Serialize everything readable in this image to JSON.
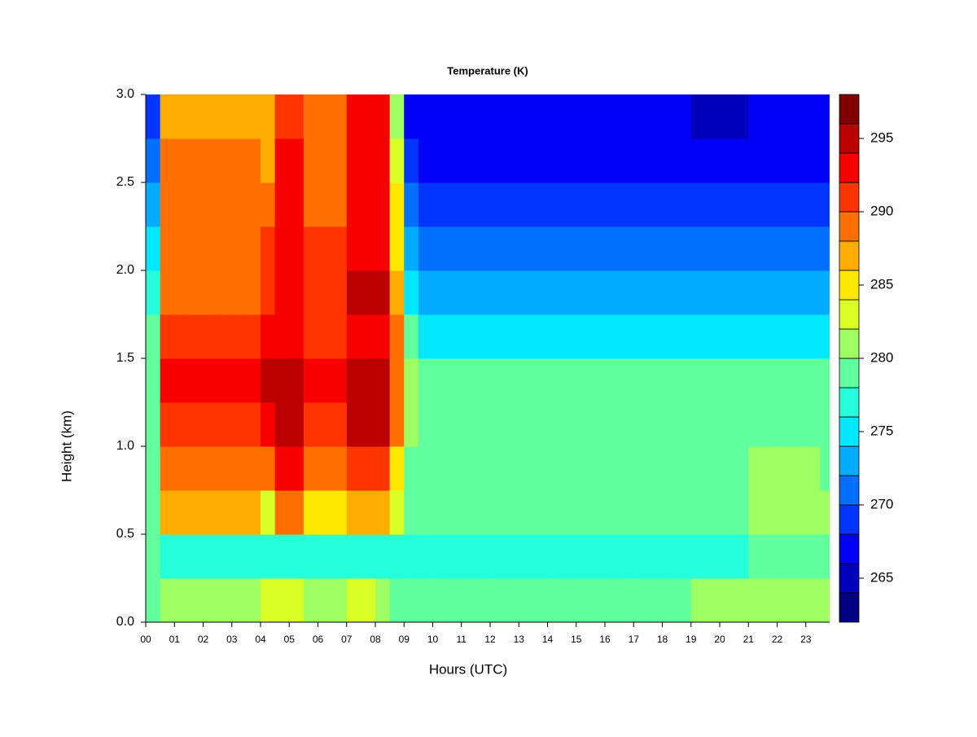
{
  "chart_data": {
    "type": "heatmap",
    "title": "Temperature (K)",
    "xlabel": "Hours (UTC)",
    "ylabel": "Height (km)",
    "xlim": [
      0,
      23.83
    ],
    "ylim": [
      0,
      3
    ],
    "xticks": [
      {
        "value": 0,
        "label": "00"
      },
      {
        "value": 1,
        "label": "01"
      },
      {
        "value": 2,
        "label": "02"
      },
      {
        "value": 3,
        "label": "03"
      },
      {
        "value": 4,
        "label": "04"
      },
      {
        "value": 5,
        "label": "05"
      },
      {
        "value": 6,
        "label": "06"
      },
      {
        "value": 7,
        "label": "07"
      },
      {
        "value": 8,
        "label": "08"
      },
      {
        "value": 9,
        "label": "09"
      },
      {
        "value": 10,
        "label": "10"
      },
      {
        "value": 11,
        "label": "11"
      },
      {
        "value": 12,
        "label": "12"
      },
      {
        "value": 13,
        "label": "13"
      },
      {
        "value": 14,
        "label": "14"
      },
      {
        "value": 15,
        "label": "15"
      },
      {
        "value": 16,
        "label": "16"
      },
      {
        "value": 17,
        "label": "17"
      },
      {
        "value": 18,
        "label": "18"
      },
      {
        "value": 19,
        "label": "19"
      },
      {
        "value": 20,
        "label": "20"
      },
      {
        "value": 21,
        "label": "21"
      },
      {
        "value": 22,
        "label": "22"
      },
      {
        "value": 23,
        "label": "23"
      }
    ],
    "yticks": [
      {
        "value": 0,
        "label": "0.0"
      },
      0.5,
      {
        "value": 1,
        "label": "1.0"
      },
      1.5,
      {
        "value": 2,
        "label": "2.0"
      },
      2.5,
      {
        "value": 3,
        "label": "3.0"
      }
    ],
    "levels": [
      262,
      264,
      266,
      268,
      270,
      272,
      274,
      276,
      278,
      280,
      282,
      284,
      286,
      288,
      290,
      292,
      294,
      296,
      298
    ],
    "colors": [
      "#000080",
      "#0000BB",
      "#0000F7",
      "#0035FF",
      "#0070FF",
      "#00ACFF",
      "#00E8FF",
      "#25FFDA",
      "#61FF9D",
      "#9DFF61",
      "#DAFF25",
      "#FFE800",
      "#FFAC00",
      "#FF7000",
      "#FF3500",
      "#F70000",
      "#BB0000",
      "#800000"
    ],
    "colorbar_ticks": [
      265,
      270,
      275,
      280,
      285,
      290,
      295
    ],
    "x": [
      0.25,
      0.75,
      1.25,
      1.75,
      2.25,
      2.75,
      3.25,
      3.75,
      4.25,
      4.75,
      5.25,
      5.75,
      6.25,
      6.75,
      7.25,
      7.75,
      8.25,
      8.75,
      9.25,
      9.75,
      10.25,
      10.75,
      11.25,
      11.75,
      12.25,
      12.75,
      13.25,
      13.75,
      14.25,
      14.75,
      15.25,
      15.75,
      16.25,
      16.75,
      17.25,
      17.75,
      18.25,
      18.75,
      19.25,
      19.75,
      20.25,
      20.75,
      21.25,
      21.75,
      22.25,
      22.75,
      23.25,
      23.75
    ],
    "y": [
      0.125,
      0.375,
      0.625,
      0.875,
      1.125,
      1.375,
      1.625,
      1.875,
      2.125,
      2.375,
      2.625,
      2.875
    ],
    "z": [
      [
        279,
        281,
        281,
        281,
        281,
        281,
        281,
        281,
        283,
        283,
        283,
        281,
        281,
        281,
        283,
        283,
        281,
        279,
        279,
        279,
        279,
        279,
        279,
        279,
        279,
        279,
        279,
        279,
        279,
        279,
        279,
        279,
        279,
        279,
        279,
        279,
        279,
        279,
        281,
        281,
        281,
        281,
        281,
        281,
        281,
        281,
        281,
        281
      ],
      [
        279,
        277,
        277,
        277,
        277,
        277,
        277,
        277,
        277,
        277,
        277,
        277,
        277,
        277,
        277,
        277,
        277,
        277,
        277,
        277,
        277,
        277,
        277,
        277,
        277,
        277,
        277,
        277,
        277,
        277,
        277,
        277,
        277,
        277,
        277,
        277,
        277,
        277,
        277,
        277,
        277,
        277,
        279,
        279,
        279,
        279,
        279,
        279
      ],
      [
        279,
        287,
        287,
        287,
        287,
        287,
        287,
        287,
        283,
        289,
        289,
        285,
        285,
        285,
        287,
        287,
        287,
        283,
        279,
        279,
        279,
        279,
        279,
        279,
        279,
        279,
        279,
        279,
        279,
        279,
        279,
        279,
        279,
        279,
        279,
        279,
        279,
        279,
        279,
        279,
        279,
        279,
        281,
        281,
        281,
        281,
        281,
        281
      ],
      [
        279,
        289,
        289,
        289,
        289,
        289,
        289,
        289,
        289,
        293,
        293,
        289,
        289,
        289,
        291,
        291,
        291,
        285,
        279,
        279,
        279,
        279,
        279,
        279,
        279,
        279,
        279,
        279,
        279,
        279,
        279,
        279,
        279,
        279,
        279,
        279,
        279,
        279,
        279,
        279,
        279,
        279,
        281,
        281,
        281,
        281,
        281,
        279
      ],
      [
        279,
        291,
        291,
        291,
        291,
        291,
        291,
        291,
        293,
        295,
        295,
        291,
        291,
        291,
        295,
        295,
        295,
        289,
        281,
        279,
        279,
        279,
        279,
        279,
        279,
        279,
        279,
        279,
        279,
        279,
        279,
        279,
        279,
        279,
        279,
        279,
        279,
        279,
        279,
        279,
        279,
        279,
        279,
        279,
        279,
        279,
        279,
        279
      ],
      [
        279,
        293,
        293,
        293,
        293,
        293,
        293,
        293,
        295,
        295,
        295,
        293,
        293,
        293,
        295,
        295,
        295,
        289,
        281,
        279,
        279,
        279,
        279,
        279,
        279,
        279,
        279,
        279,
        279,
        279,
        279,
        279,
        279,
        279,
        279,
        279,
        279,
        279,
        279,
        279,
        279,
        279,
        279,
        279,
        279,
        279,
        279,
        279
      ],
      [
        279,
        291,
        291,
        291,
        291,
        291,
        291,
        291,
        293,
        293,
        293,
        291,
        291,
        291,
        293,
        293,
        293,
        289,
        279,
        275,
        275,
        275,
        275,
        275,
        275,
        275,
        275,
        275,
        275,
        275,
        275,
        275,
        275,
        275,
        275,
        275,
        275,
        275,
        275,
        275,
        275,
        275,
        275,
        275,
        275,
        275,
        275,
        275
      ],
      [
        277,
        289,
        289,
        289,
        289,
        289,
        289,
        289,
        291,
        293,
        293,
        291,
        291,
        291,
        295,
        295,
        295,
        287,
        275,
        273,
        273,
        273,
        273,
        273,
        273,
        273,
        273,
        273,
        273,
        273,
        273,
        273,
        273,
        273,
        273,
        273,
        273,
        273,
        273,
        273,
        273,
        273,
        273,
        273,
        273,
        273,
        273,
        273
      ],
      [
        275,
        289,
        289,
        289,
        289,
        289,
        289,
        289,
        291,
        293,
        293,
        291,
        291,
        291,
        293,
        293,
        293,
        285,
        273,
        271,
        271,
        271,
        271,
        271,
        271,
        271,
        271,
        271,
        271,
        271,
        271,
        271,
        271,
        271,
        271,
        271,
        271,
        271,
        271,
        271,
        271,
        271,
        271,
        271,
        271,
        271,
        271,
        271
      ],
      [
        273,
        289,
        289,
        289,
        289,
        289,
        289,
        289,
        289,
        293,
        293,
        289,
        289,
        289,
        293,
        293,
        293,
        285,
        271,
        269,
        269,
        269,
        269,
        269,
        269,
        269,
        269,
        269,
        269,
        269,
        269,
        269,
        269,
        269,
        269,
        269,
        269,
        269,
        269,
        269,
        269,
        269,
        269,
        269,
        269,
        269,
        269,
        269
      ],
      [
        271,
        289,
        289,
        289,
        289,
        289,
        289,
        289,
        287,
        293,
        293,
        289,
        289,
        289,
        293,
        293,
        293,
        283,
        269,
        267,
        267,
        267,
        267,
        267,
        267,
        267,
        267,
        267,
        267,
        267,
        267,
        267,
        267,
        267,
        267,
        267,
        267,
        267,
        267,
        267,
        267,
        267,
        267,
        267,
        267,
        267,
        267,
        267
      ],
      [
        269,
        287,
        287,
        287,
        287,
        287,
        287,
        287,
        287,
        291,
        291,
        289,
        289,
        289,
        293,
        293,
        293,
        281,
        267,
        267,
        267,
        267,
        267,
        267,
        267,
        267,
        267,
        267,
        267,
        267,
        267,
        267,
        267,
        267,
        267,
        267,
        267,
        267,
        265,
        265,
        265,
        265,
        267,
        267,
        267,
        267,
        267,
        267
      ]
    ]
  }
}
